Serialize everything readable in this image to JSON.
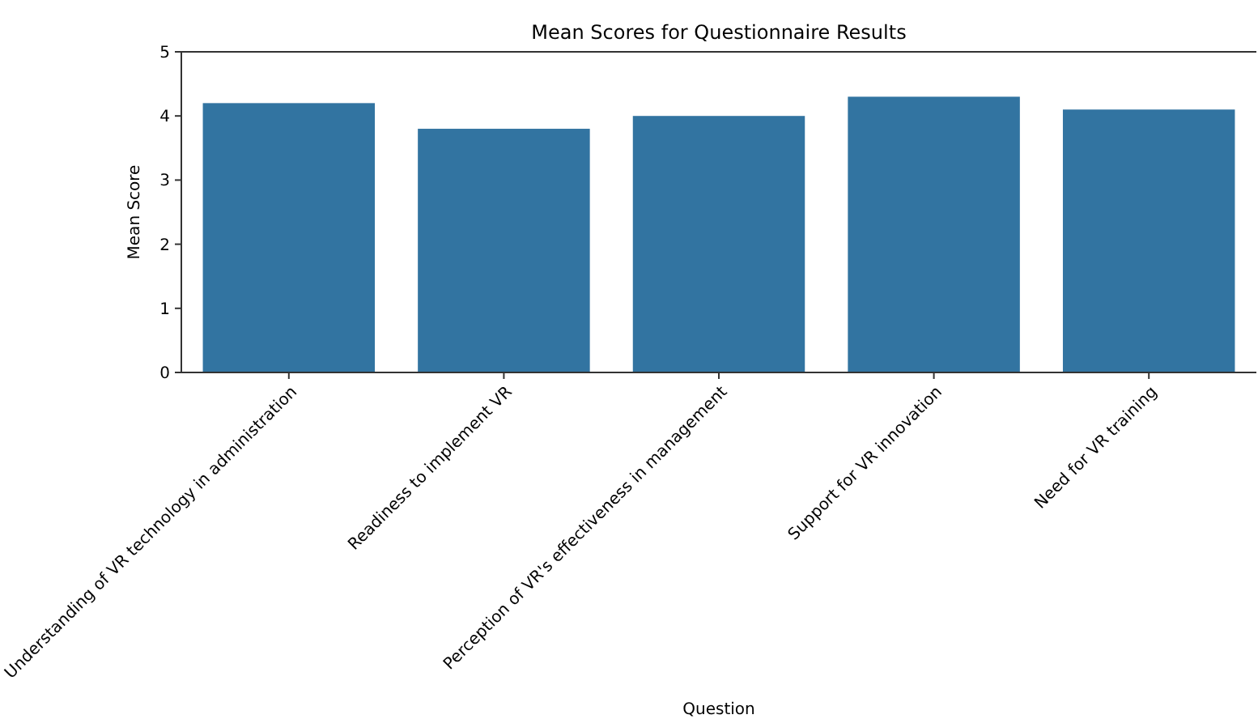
{
  "chart_data": {
    "type": "bar",
    "title": "Mean Scores for Questionnaire Results",
    "xlabel": "Question",
    "ylabel": "Mean Score",
    "categories": [
      "Understanding of VR technology in administration",
      "Readiness to implement VR",
      "Perception of VR's effectiveness in management",
      "Support for VR innovation",
      "Need for VR training"
    ],
    "values": [
      4.2,
      3.8,
      4.0,
      4.3,
      4.1
    ],
    "color": "#3274a1",
    "ylim": [
      0,
      5
    ],
    "yticks": [
      0,
      1,
      2,
      3,
      4,
      5
    ]
  }
}
